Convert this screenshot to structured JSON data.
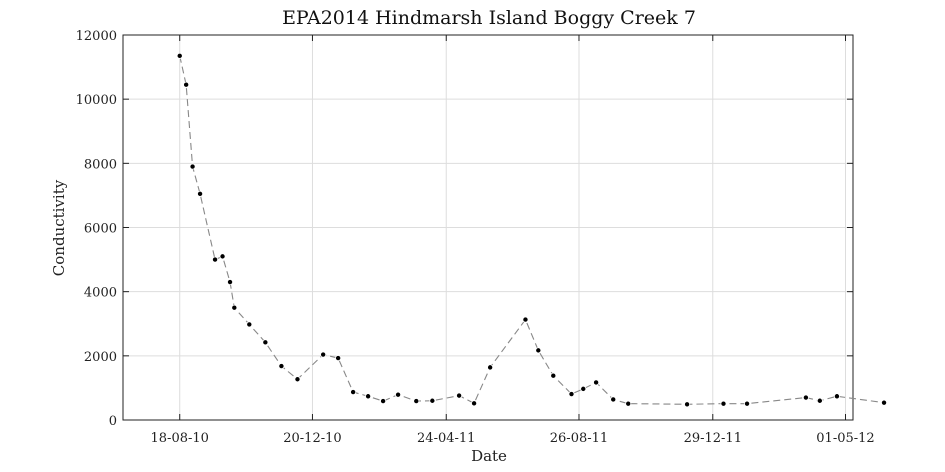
{
  "chart_data": {
    "type": "line",
    "title": "EPA2014 Hindmarsh Island Boggy Creek 7",
    "xlabel": "Date",
    "ylabel": "Conductivity",
    "x_type": "date",
    "xlim": [
      "2010-06-26",
      "2012-05-08"
    ],
    "ylim": [
      0,
      12000
    ],
    "grid": true,
    "legend": "none",
    "x_ticks": [
      {
        "date": "2010-08-18",
        "label": "18-08-10"
      },
      {
        "date": "2010-12-20",
        "label": "20-12-10"
      },
      {
        "date": "2011-04-24",
        "label": "24-04-11"
      },
      {
        "date": "2011-08-26",
        "label": "26-08-11"
      },
      {
        "date": "2011-12-29",
        "label": "29-12-11"
      },
      {
        "date": "2012-05-01",
        "label": "01-05-12"
      }
    ],
    "y_ticks": [
      0,
      2000,
      4000,
      6000,
      8000,
      10000,
      12000
    ],
    "series": [
      {
        "line_color": "#888888",
        "marker_color": "#000000",
        "line_style": "dashed",
        "points": [
          {
            "x": "2010-08-18",
            "y": 11350
          },
          {
            "x": "2010-08-24",
            "y": 10450
          },
          {
            "x": "2010-08-30",
            "y": 7900
          },
          {
            "x": "2010-09-06",
            "y": 7050
          },
          {
            "x": "2010-09-20",
            "y": 5000
          },
          {
            "x": "2010-09-27",
            "y": 5100
          },
          {
            "x": "2010-10-04",
            "y": 4300
          },
          {
            "x": "2010-10-08",
            "y": 3500
          },
          {
            "x": "2010-10-22",
            "y": 2980
          },
          {
            "x": "2010-11-06",
            "y": 2420
          },
          {
            "x": "2010-11-21",
            "y": 1680
          },
          {
            "x": "2010-12-06",
            "y": 1270
          },
          {
            "x": "2010-12-30",
            "y": 2040
          },
          {
            "x": "2011-01-13",
            "y": 1930
          },
          {
            "x": "2011-01-27",
            "y": 870
          },
          {
            "x": "2011-02-10",
            "y": 740
          },
          {
            "x": "2011-02-24",
            "y": 590
          },
          {
            "x": "2011-03-10",
            "y": 790
          },
          {
            "x": "2011-03-27",
            "y": 590
          },
          {
            "x": "2011-04-11",
            "y": 600
          },
          {
            "x": "2011-05-06",
            "y": 760
          },
          {
            "x": "2011-05-20",
            "y": 520
          },
          {
            "x": "2011-06-04",
            "y": 1640
          },
          {
            "x": "2011-07-07",
            "y": 3130
          },
          {
            "x": "2011-07-19",
            "y": 2170
          },
          {
            "x": "2011-08-02",
            "y": 1380
          },
          {
            "x": "2011-08-19",
            "y": 810
          },
          {
            "x": "2011-08-30",
            "y": 970
          },
          {
            "x": "2011-09-11",
            "y": 1170
          },
          {
            "x": "2011-09-27",
            "y": 640
          },
          {
            "x": "2011-10-11",
            "y": 510
          },
          {
            "x": "2011-12-05",
            "y": 490
          },
          {
            "x": "2012-01-08",
            "y": 510
          },
          {
            "x": "2012-01-30",
            "y": 510
          },
          {
            "x": "2012-03-25",
            "y": 700
          },
          {
            "x": "2012-04-07",
            "y": 600
          },
          {
            "x": "2012-04-23",
            "y": 740
          },
          {
            "x": "2012-06-06",
            "y": 540
          }
        ]
      }
    ]
  }
}
